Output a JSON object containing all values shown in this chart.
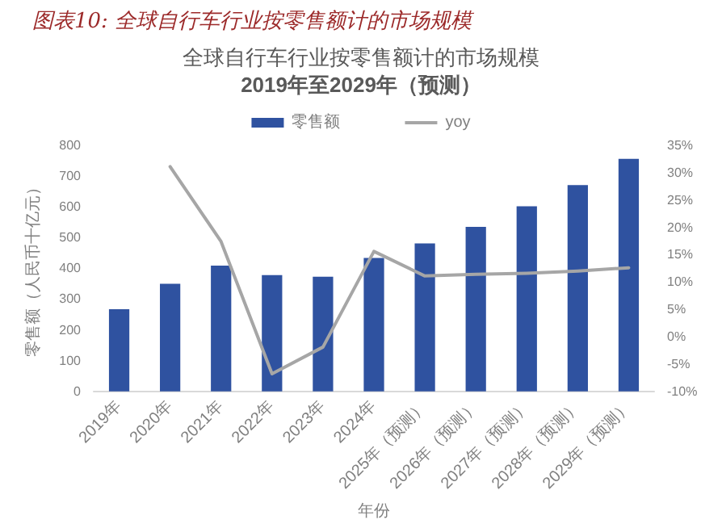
{
  "chart_data": {
    "type": "bar",
    "title": "全球自行车行业按零售额计的市场规模",
    "subtitle": "2019年至2029年（预测）",
    "annotations": [
      "图表10: 全球自行车行业按零售额计的市场规模"
    ],
    "xlabel": "年份",
    "ylabel": "零售额（人民币十亿元）",
    "categories": [
      "2019年",
      "2020年",
      "2021年",
      "2022年",
      "2023年",
      "2024年",
      "2025年（预测）",
      "2026年（预测）",
      "2027年（预测）",
      "2028年（预测）",
      "2029年（预测）"
    ],
    "series": [
      {
        "name": "零售额",
        "color": "#2f52a0",
        "values": [
          267,
          350,
          409,
          378,
          373,
          434,
          481,
          535,
          602,
          671,
          756
        ]
      },
      {
        "name": "yoy",
        "type": "line",
        "axis": "y2",
        "color": "#a6a6a6",
        "values": [
          null,
          31.1,
          17.4,
          -6.8,
          -1.9,
          15.6,
          11.1,
          11.4,
          11.6,
          12.0,
          12.6
        ]
      }
    ],
    "ylim": [
      0,
      800
    ],
    "yticks": [
      0,
      100,
      200,
      300,
      400,
      500,
      600,
      700,
      800
    ],
    "y2lim": [
      -10,
      35
    ],
    "y2ticks": [
      {
        "value": -10,
        "label": "-10%"
      },
      {
        "value": -5,
        "label": "-5%"
      },
      {
        "value": 0,
        "label": "0%"
      },
      {
        "value": 5,
        "label": "5%"
      },
      {
        "value": 10,
        "label": "10%"
      },
      {
        "value": 15,
        "label": "15%"
      },
      {
        "value": 20,
        "label": "20%"
      },
      {
        "value": 25,
        "label": "25%"
      },
      {
        "value": 30,
        "label": "30%"
      },
      {
        "value": 35,
        "label": "35%"
      }
    ],
    "grid": false,
    "legend": "top",
    "marker": "none",
    "line_style": "solid"
  }
}
